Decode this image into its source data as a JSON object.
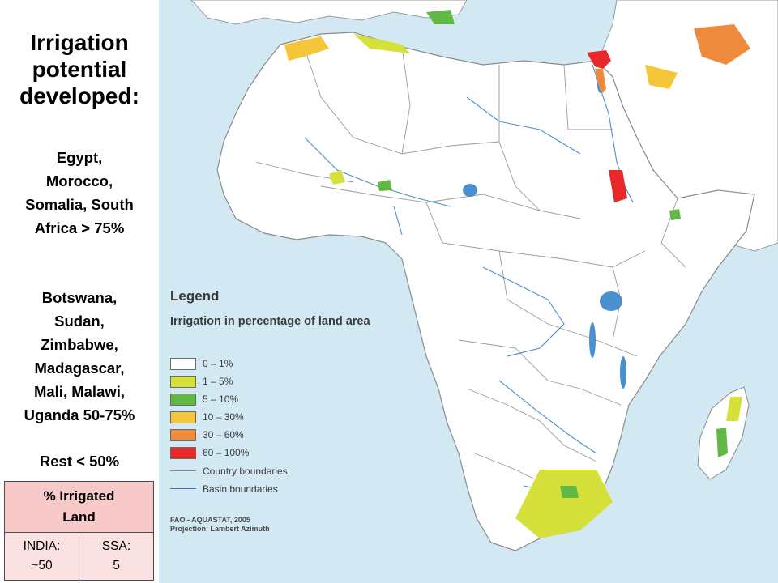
{
  "panel": {
    "title_lines": [
      "Irrigation",
      "potential",
      "developed:"
    ],
    "group1_lines": [
      "Egypt,",
      "Morocco,",
      "Somalia, South",
      "Africa > 75%"
    ],
    "group2_lines": [
      "Botswana,",
      "Sudan,",
      "Zimbabwe,",
      "Madagascar,",
      "Mali, Malawi,",
      "Uganda 50-75%"
    ],
    "rest": "Rest < 50%"
  },
  "table": {
    "header_lines": [
      "% Irrigated",
      "Land"
    ],
    "india_lines": [
      "INDIA:",
      "~50"
    ],
    "ssa_lines": [
      "SSA:",
      "5"
    ]
  },
  "legend": {
    "title": "Legend",
    "subtitle": "Irrigation in percentage of land area",
    "classes": [
      {
        "label": "0 – 1%",
        "color": "#ffffff"
      },
      {
        "label": "1 – 5%",
        "color": "#d6e03a"
      },
      {
        "label": "5 – 10%",
        "color": "#62b845"
      },
      {
        "label": "10 – 30%",
        "color": "#f6c63a"
      },
      {
        "label": "30 – 60%",
        "color": "#ee8a3c"
      },
      {
        "label": "60 – 100%",
        "color": "#e8282b"
      }
    ],
    "lines": [
      {
        "label": "Country boundaries",
        "color": "#8a8a8a"
      },
      {
        "label": "Basin boundaries",
        "color": "#3d6fb3"
      }
    ],
    "source": "FAO - AQUASTAT, 2005",
    "projection": "Projection: Lambert Azimuth"
  },
  "colors": {
    "sea": "#d2e8f3",
    "land": "#ffffff",
    "water": "#4a90d0"
  }
}
